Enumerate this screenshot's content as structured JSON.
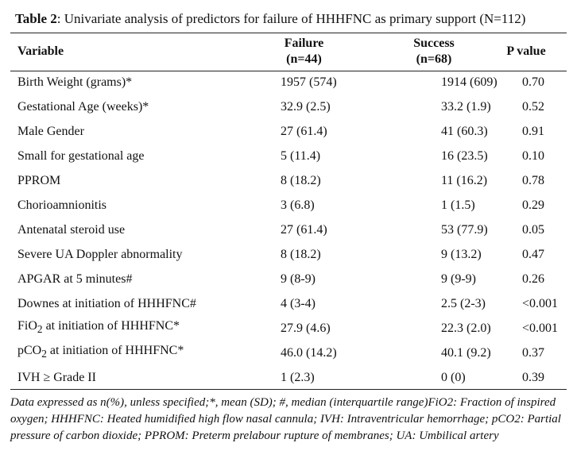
{
  "table": {
    "title_label": "Table 2",
    "title_text": ": Univariate analysis of predictors for failure of HHHFNC as primary support (N=112)",
    "headers": {
      "variable": "Variable",
      "failure_line1": "Failure",
      "failure_line2": "(n=44)",
      "success_line1": "Success",
      "success_line2": "(n=68)",
      "p_value": "P value"
    },
    "rows": [
      {
        "variable": "Birth Weight (grams)*",
        "failure": "1957 (574)",
        "success": "1914 (609)",
        "p": "0.70"
      },
      {
        "variable": "Gestational Age (weeks)*",
        "failure": "32.9 (2.5)",
        "success": "33.2 (1.9)",
        "p": "0.52"
      },
      {
        "variable": "Male Gender",
        "failure": "27 (61.4)",
        "success": "41 (60.3)",
        "p": "0.91"
      },
      {
        "variable": "Small for gestational age",
        "failure": "5 (11.4)",
        "success": "16 (23.5)",
        "p": "0.10"
      },
      {
        "variable": "PPROM",
        "failure": "8 (18.2)",
        "success": "11 (16.2)",
        "p": "0.78"
      },
      {
        "variable": "Chorioamnionitis",
        "failure": "3 (6.8)",
        "success": "1 (1.5)",
        "p": "0.29"
      },
      {
        "variable": "Antenatal steroid use",
        "failure": "27 (61.4)",
        "success": "53 (77.9)",
        "p": "0.05"
      },
      {
        "variable": "Severe UA Doppler abnormality",
        "failure": "8 (18.2)",
        "success": "9 (13.2)",
        "p": "0.47"
      },
      {
        "variable": "APGAR at 5 minutes#",
        "failure": "9 (8-9)",
        "success": "9 (9-9)",
        "p": "0.26"
      },
      {
        "variable": "Downes at initiation of HHHFNC#",
        "failure": "4 (3-4)",
        "success": "2.5 (2-3)",
        "p": "<0.001"
      },
      {
        "variable_prefix": "FiO",
        "variable_sub": "2",
        "variable_suffix": " at initiation of HHHFNC*",
        "failure": "27.9 (4.6)",
        "success": "22.3 (2.0)",
        "p": "<0.001"
      },
      {
        "variable_prefix": "pCO",
        "variable_sub": "2",
        "variable_suffix": " at initiation of HHHFNC*",
        "failure": "46.0 (14.2)",
        "success": "40.1 (9.2)",
        "p": "0.37"
      },
      {
        "variable": "IVH ≥ Grade II",
        "failure": "1 (2.3)",
        "success": "0 (0)",
        "p": "0.39"
      }
    ],
    "footnote": "Data expressed as n(%), unless specified;*, mean (SD); #, median (interquartile range)FiO2: Fraction of inspired oxygen; HHHFNC: Heated humidified high flow nasal cannula; IVH: Intraventricular hemorrhage; pCO2: Partial pressure of carbon dioxide; PPROM: Preterm prelabour rupture of membranes; UA: Umbilical artery"
  }
}
